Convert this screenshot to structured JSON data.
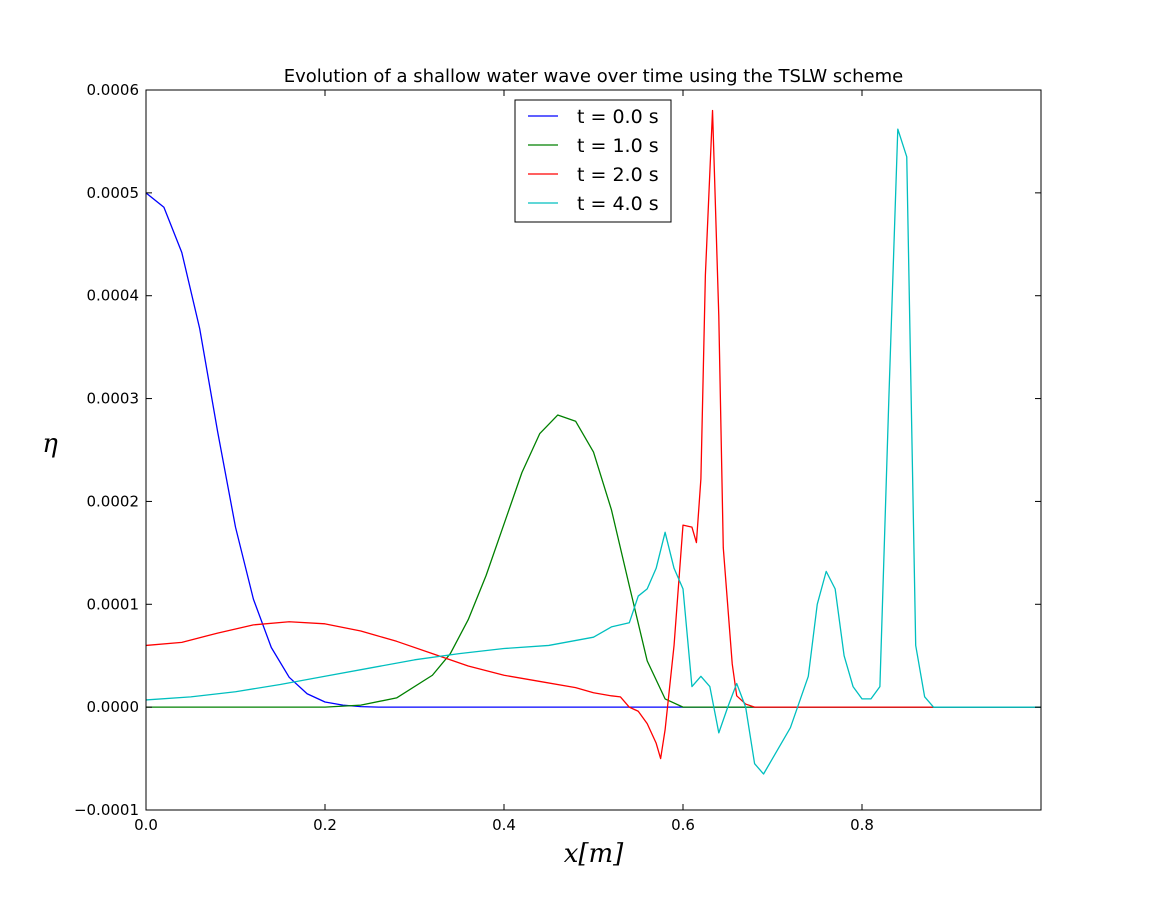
{
  "chart_data": {
    "type": "line",
    "title": "Evolution of a shallow water wave over time using the TSLW scheme",
    "xlabel": "x[m]",
    "ylabel": "η",
    "xlim": [
      0.0,
      1.0
    ],
    "ylim": [
      -0.0001,
      0.0006
    ],
    "xticks": [
      0.0,
      0.2,
      0.4,
      0.6,
      0.8
    ],
    "xtick_labels": [
      "0.0",
      "0.2",
      "0.4",
      "0.6",
      "0.8"
    ],
    "yticks": [
      -0.0001,
      0.0,
      0.0001,
      0.0002,
      0.0003,
      0.0004,
      0.0005,
      0.0006
    ],
    "ytick_labels": [
      "−0.0001",
      "0.0000",
      "0.0001",
      "0.0002",
      "0.0003",
      "0.0004",
      "0.0005",
      "0.0006"
    ],
    "grid": false,
    "legend_position": "top-center",
    "series": [
      {
        "name": "t = 0.0 s",
        "color": "#0000ff",
        "x": [
          0.0,
          0.02,
          0.04,
          0.06,
          0.08,
          0.1,
          0.12,
          0.14,
          0.16,
          0.18,
          0.2,
          0.22,
          0.24,
          0.26,
          0.3,
          1.0
        ],
        "y": [
          0.0005,
          0.000486,
          0.000442,
          0.000368,
          0.000268,
          0.000175,
          0.000105,
          5.8e-05,
          2.9e-05,
          1.3e-05,
          5e-06,
          2e-06,
          5e-07,
          0.0,
          0.0,
          0.0
        ]
      },
      {
        "name": "t = 1.0 s",
        "color": "#008000",
        "x": [
          0.0,
          0.2,
          0.24,
          0.28,
          0.32,
          0.34,
          0.36,
          0.38,
          0.4,
          0.42,
          0.44,
          0.46,
          0.48,
          0.5,
          0.52,
          0.54,
          0.56,
          0.58,
          0.6,
          0.62,
          1.0
        ],
        "y": [
          0.0,
          0.0,
          2e-06,
          9e-06,
          3.1e-05,
          5.2e-05,
          8.5e-05,
          0.000128,
          0.000178,
          0.000228,
          0.000266,
          0.000284,
          0.000278,
          0.000248,
          0.000192,
          0.000118,
          4.5e-05,
          8e-06,
          0.0,
          0.0,
          0.0
        ]
      },
      {
        "name": "t = 2.0 s",
        "color": "#ff0000",
        "x": [
          0.0,
          0.04,
          0.08,
          0.12,
          0.16,
          0.2,
          0.24,
          0.28,
          0.32,
          0.36,
          0.4,
          0.44,
          0.48,
          0.5,
          0.52,
          0.53,
          0.54,
          0.55,
          0.56,
          0.57,
          0.575,
          0.58,
          0.59,
          0.6,
          0.61,
          0.615,
          0.62,
          0.625,
          0.633,
          0.64,
          0.645,
          0.655,
          0.66,
          0.67,
          0.68,
          0.88
        ],
        "y": [
          6e-05,
          6.3e-05,
          7.2e-05,
          8e-05,
          8.3e-05,
          8.1e-05,
          7.4e-05,
          6.4e-05,
          5.2e-05,
          4e-05,
          3.1e-05,
          2.5e-05,
          1.9e-05,
          1.4e-05,
          1.1e-05,
          1e-05,
          0.0,
          -4e-06,
          -1.6e-05,
          -3.5e-05,
          -5e-05,
          -2.2e-05,
          6e-05,
          0.000177,
          0.000175,
          0.00016,
          0.000222,
          0.00042,
          0.00058,
          0.00038,
          0.000155,
          4.2e-05,
          1.1e-05,
          3e-06,
          0.0,
          0.0
        ]
      },
      {
        "name": "t = 4.0 s",
        "color": "#00bfbf",
        "x": [
          0.0,
          0.05,
          0.1,
          0.15,
          0.2,
          0.25,
          0.3,
          0.35,
          0.4,
          0.45,
          0.5,
          0.52,
          0.54,
          0.55,
          0.56,
          0.57,
          0.58,
          0.59,
          0.6,
          0.61,
          0.62,
          0.63,
          0.64,
          0.65,
          0.66,
          0.67,
          0.68,
          0.69,
          0.7,
          0.72,
          0.74,
          0.75,
          0.76,
          0.77,
          0.78,
          0.79,
          0.8,
          0.81,
          0.82,
          0.83,
          0.84,
          0.85,
          0.86,
          0.87,
          0.88,
          1.0
        ],
        "y": [
          7e-06,
          1e-05,
          1.5e-05,
          2.2e-05,
          3e-05,
          3.8e-05,
          4.6e-05,
          5.2e-05,
          5.7e-05,
          6e-05,
          6.8e-05,
          7.8e-05,
          8.2e-05,
          0.000108,
          0.000115,
          0.000135,
          0.00017,
          0.000135,
          0.000115,
          2e-05,
          3e-05,
          2e-05,
          -2.5e-05,
          0.0,
          2.3e-05,
          0.0,
          -5.5e-05,
          -6.5e-05,
          -5e-05,
          -2e-05,
          3e-05,
          0.0001,
          0.000132,
          0.000115,
          5e-05,
          2e-05,
          8e-06,
          8e-06,
          2e-05,
          0.0003,
          0.000562,
          0.000535,
          6e-05,
          1e-05,
          0.0,
          0.0
        ]
      }
    ]
  }
}
